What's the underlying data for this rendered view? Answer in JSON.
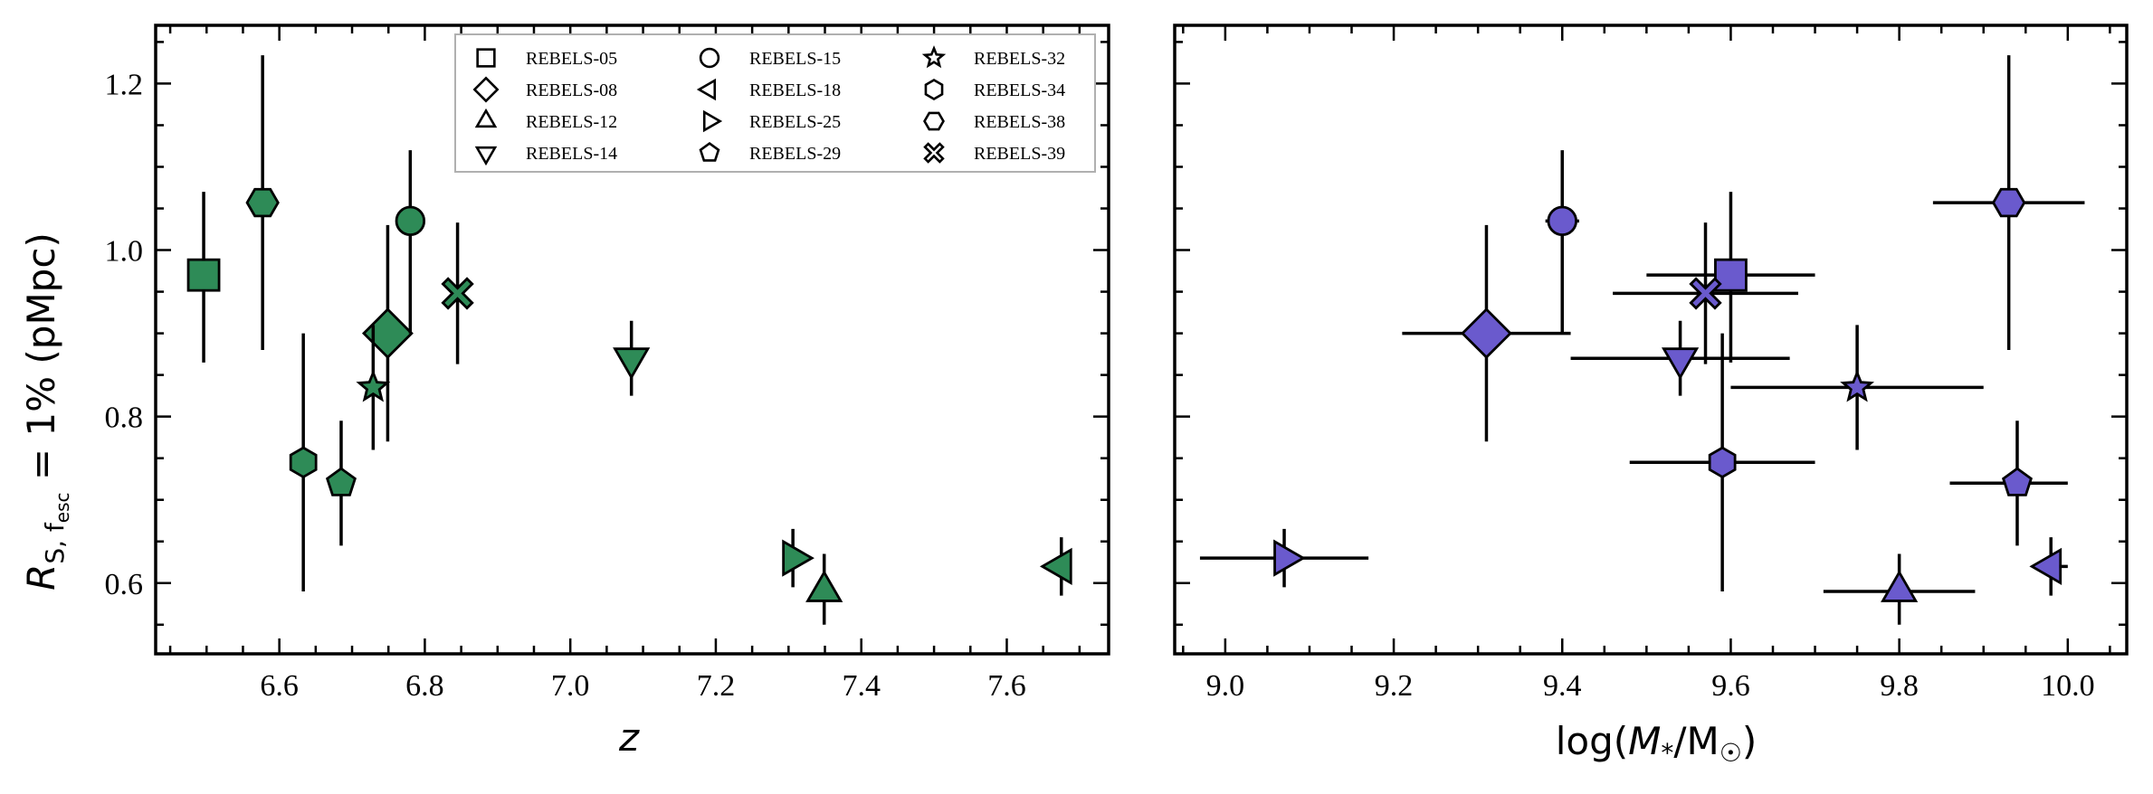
{
  "figure": {
    "ylabel": "R_S, f_esc = 1% (pMpc)",
    "ylabel_parts": {
      "main": "R",
      "sub": "S, f",
      "sub2": "esc",
      "rest": " = 1% (pMpc)"
    },
    "colors": {
      "left": "#2e8b57",
      "right": "#6a5acd",
      "edge": "#000000"
    }
  },
  "chart_data": [
    {
      "type": "scatter",
      "panel": "left",
      "title": "",
      "xlabel": "z",
      "ylabel": "R_S, f_esc = 1% (pMpc)",
      "xlim": [
        6.43,
        7.74
      ],
      "ylim": [
        0.515,
        1.27
      ],
      "xticks": [
        6.6,
        6.8,
        7.0,
        7.2,
        7.4,
        7.6
      ],
      "xtick_labels": [
        "6.6",
        "6.8",
        "7.0",
        "7.2",
        "7.4",
        "7.6"
      ],
      "yticks": [
        0.6,
        0.8,
        1.0,
        1.2
      ],
      "ytick_labels": [
        "0.6",
        "0.8",
        "1.0",
        "1.2"
      ],
      "grid": false,
      "legend": {
        "position": "top-center",
        "entries": [
          {
            "label": "REBELS-05",
            "marker": "square"
          },
          {
            "label": "REBELS-08",
            "marker": "diamond"
          },
          {
            "label": "REBELS-12",
            "marker": "triangle-up"
          },
          {
            "label": "REBELS-14",
            "marker": "triangle-down"
          },
          {
            "label": "REBELS-15",
            "marker": "circle"
          },
          {
            "label": "REBELS-18",
            "marker": "triangle-left"
          },
          {
            "label": "REBELS-25",
            "marker": "triangle-right"
          },
          {
            "label": "REBELS-29",
            "marker": "pentagon"
          },
          {
            "label": "REBELS-32",
            "marker": "star"
          },
          {
            "label": "REBELS-34",
            "marker": "hexagon"
          },
          {
            "label": "REBELS-38",
            "marker": "hexagon2"
          },
          {
            "label": "REBELS-39",
            "marker": "x"
          }
        ]
      },
      "points": [
        {
          "name": "REBELS-05",
          "marker": "square",
          "x": 6.496,
          "y": 0.97,
          "yerr": [
            0.105,
            0.1
          ]
        },
        {
          "name": "REBELS-08",
          "marker": "diamond",
          "x": 6.749,
          "y": 0.9,
          "yerr": [
            0.13,
            0.13
          ]
        },
        {
          "name": "REBELS-12",
          "marker": "triangle-up",
          "x": 7.349,
          "y": 0.59,
          "yerr": [
            0.04,
            0.045
          ]
        },
        {
          "name": "REBELS-14",
          "marker": "triangle-down",
          "x": 7.084,
          "y": 0.87,
          "yerr": [
            0.045,
            0.045
          ]
        },
        {
          "name": "REBELS-15",
          "marker": "circle",
          "x": 6.78,
          "y": 1.035,
          "yerr": [
            0.135,
            0.085
          ]
        },
        {
          "name": "REBELS-18",
          "marker": "triangle-left",
          "x": 7.675,
          "y": 0.62,
          "yerr": [
            0.035,
            0.035
          ]
        },
        {
          "name": "REBELS-25",
          "marker": "triangle-right",
          "x": 7.306,
          "y": 0.63,
          "yerr": [
            0.035,
            0.035
          ]
        },
        {
          "name": "REBELS-29",
          "marker": "pentagon",
          "x": 6.685,
          "y": 0.72,
          "yerr": [
            0.075,
            0.075
          ]
        },
        {
          "name": "REBELS-32",
          "marker": "star",
          "x": 6.729,
          "y": 0.835,
          "yerr": [
            0.075,
            0.075
          ]
        },
        {
          "name": "REBELS-34",
          "marker": "hexagon",
          "x": 6.633,
          "y": 0.745,
          "yerr": [
            0.155,
            0.155
          ]
        },
        {
          "name": "REBELS-38",
          "marker": "hexagon2",
          "x": 6.577,
          "y": 1.057,
          "yerr": [
            0.177,
            0.177
          ]
        },
        {
          "name": "REBELS-39",
          "marker": "x",
          "x": 6.845,
          "y": 0.948,
          "yerr": [
            0.085,
            0.085
          ]
        }
      ]
    },
    {
      "type": "scatter",
      "panel": "right",
      "title": "",
      "xlabel": "log(M_*/M_sun)",
      "xlabel_parts": {
        "pre": "log(",
        "main": "M",
        "sub": "*",
        "mid": "/M",
        "sub2": "☉",
        "post": ")"
      },
      "xlim": [
        8.94,
        10.07
      ],
      "ylim": [
        0.515,
        1.27
      ],
      "xticks": [
        9.0,
        9.2,
        9.4,
        9.6,
        9.8,
        10.0
      ],
      "xtick_labels": [
        "9.0",
        "9.2",
        "9.4",
        "9.6",
        "9.8",
        "10.0"
      ],
      "yticks": [
        0.6,
        0.8,
        1.0,
        1.2
      ],
      "grid": false,
      "points": [
        {
          "name": "REBELS-05",
          "marker": "square",
          "x": 9.6,
          "y": 0.97,
          "xerr": [
            0.1,
            0.1
          ],
          "yerr": [
            0.105,
            0.1
          ]
        },
        {
          "name": "REBELS-08",
          "marker": "diamond",
          "x": 9.31,
          "y": 0.9,
          "xerr": [
            0.1,
            0.1
          ],
          "yerr": [
            0.13,
            0.13
          ]
        },
        {
          "name": "REBELS-12",
          "marker": "triangle-up",
          "x": 9.8,
          "y": 0.59,
          "xerr": [
            0.09,
            0.09
          ],
          "yerr": [
            0.04,
            0.045
          ]
        },
        {
          "name": "REBELS-14",
          "marker": "triangle-down",
          "x": 9.54,
          "y": 0.87,
          "xerr": [
            0.13,
            0.13
          ],
          "yerr": [
            0.045,
            0.045
          ]
        },
        {
          "name": "REBELS-15",
          "marker": "circle",
          "x": 9.4,
          "y": 1.035,
          "xerr": [
            0.02,
            0.02
          ],
          "yerr": [
            0.135,
            0.085
          ]
        },
        {
          "name": "REBELS-18",
          "marker": "triangle-left",
          "x": 9.98,
          "y": 0.62,
          "xerr": [
            0.02,
            0.02
          ],
          "yerr": [
            0.035,
            0.035
          ]
        },
        {
          "name": "REBELS-25",
          "marker": "triangle-right",
          "x": 9.07,
          "y": 0.63,
          "xerr": [
            0.1,
            0.1
          ],
          "yerr": [
            0.035,
            0.035
          ]
        },
        {
          "name": "REBELS-29",
          "marker": "pentagon",
          "x": 9.94,
          "y": 0.72,
          "xerr": [
            0.08,
            0.06
          ],
          "yerr": [
            0.075,
            0.075
          ]
        },
        {
          "name": "REBELS-32",
          "marker": "star",
          "x": 9.75,
          "y": 0.835,
          "xerr": [
            0.15,
            0.15
          ],
          "yerr": [
            0.075,
            0.075
          ]
        },
        {
          "name": "REBELS-34",
          "marker": "hexagon",
          "x": 9.59,
          "y": 0.745,
          "xerr": [
            0.11,
            0.11
          ],
          "yerr": [
            0.155,
            0.155
          ]
        },
        {
          "name": "REBELS-38",
          "marker": "hexagon2",
          "x": 9.93,
          "y": 1.057,
          "xerr": [
            0.09,
            0.09
          ],
          "yerr": [
            0.177,
            0.177
          ]
        },
        {
          "name": "REBELS-39",
          "marker": "x",
          "x": 9.57,
          "y": 0.948,
          "xerr": [
            0.11,
            0.11
          ],
          "yerr": [
            0.085,
            0.085
          ]
        }
      ]
    }
  ]
}
